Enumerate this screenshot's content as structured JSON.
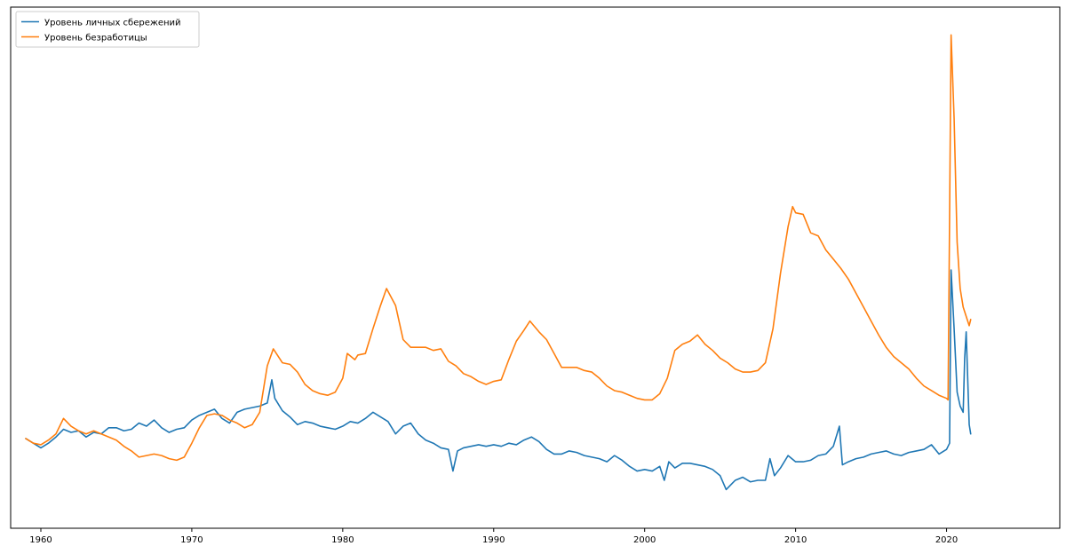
{
  "chart_data": {
    "type": "line",
    "title": "",
    "xlabel": "",
    "ylabel": "",
    "xlim": [
      1958.0,
      2027.5
    ],
    "ylim": [
      -2.5,
      31.2
    ],
    "xticks": [
      1960,
      1970,
      1980,
      1990,
      2000,
      2010,
      2020
    ],
    "xtick_labels": [
      "1960",
      "1970",
      "1980",
      "1990",
      "2000",
      "2010",
      "2020"
    ],
    "show_yticks": false,
    "grid": false,
    "legend_position": "top-left",
    "series": [
      {
        "name": "Уровень личных сбережений",
        "color": "#1f77b4",
        "points": [
          [
            1959.0,
            3.3
          ],
          [
            1959.5,
            3.0
          ],
          [
            1960.0,
            2.7
          ],
          [
            1960.5,
            3.0
          ],
          [
            1961.0,
            3.4
          ],
          [
            1961.5,
            3.9
          ],
          [
            1962.0,
            3.7
          ],
          [
            1962.5,
            3.8
          ],
          [
            1963.0,
            3.4
          ],
          [
            1963.5,
            3.7
          ],
          [
            1964.0,
            3.6
          ],
          [
            1964.5,
            4.0
          ],
          [
            1965.0,
            4.0
          ],
          [
            1965.5,
            3.8
          ],
          [
            1966.0,
            3.9
          ],
          [
            1966.5,
            4.3
          ],
          [
            1967.0,
            4.1
          ],
          [
            1967.5,
            4.5
          ],
          [
            1968.0,
            4.0
          ],
          [
            1968.5,
            3.7
          ],
          [
            1969.0,
            3.9
          ],
          [
            1969.5,
            4.0
          ],
          [
            1970.0,
            4.5
          ],
          [
            1970.5,
            4.8
          ],
          [
            1971.0,
            5.0
          ],
          [
            1971.5,
            5.2
          ],
          [
            1972.0,
            4.6
          ],
          [
            1972.5,
            4.3
          ],
          [
            1973.0,
            5.0
          ],
          [
            1973.5,
            5.2
          ],
          [
            1974.0,
            5.3
          ],
          [
            1974.5,
            5.4
          ],
          [
            1975.0,
            5.6
          ],
          [
            1975.3,
            7.1
          ],
          [
            1975.5,
            5.9
          ],
          [
            1976.0,
            5.1
          ],
          [
            1976.5,
            4.7
          ],
          [
            1977.0,
            4.2
          ],
          [
            1977.5,
            4.4
          ],
          [
            1978.0,
            4.3
          ],
          [
            1978.5,
            4.1
          ],
          [
            1979.0,
            4.0
          ],
          [
            1979.5,
            3.9
          ],
          [
            1980.0,
            4.1
          ],
          [
            1980.5,
            4.4
          ],
          [
            1981.0,
            4.3
          ],
          [
            1981.5,
            4.6
          ],
          [
            1982.0,
            5.0
          ],
          [
            1982.5,
            4.7
          ],
          [
            1983.0,
            4.4
          ],
          [
            1983.5,
            3.6
          ],
          [
            1984.0,
            4.1
          ],
          [
            1984.5,
            4.3
          ],
          [
            1985.0,
            3.6
          ],
          [
            1985.5,
            3.2
          ],
          [
            1986.0,
            3.0
          ],
          [
            1986.5,
            2.7
          ],
          [
            1987.0,
            2.6
          ],
          [
            1987.3,
            1.2
          ],
          [
            1987.6,
            2.5
          ],
          [
            1988.0,
            2.7
          ],
          [
            1988.5,
            2.8
          ],
          [
            1989.0,
            2.9
          ],
          [
            1989.5,
            2.8
          ],
          [
            1990.0,
            2.9
          ],
          [
            1990.5,
            2.8
          ],
          [
            1991.0,
            3.0
          ],
          [
            1991.5,
            2.9
          ],
          [
            1992.0,
            3.2
          ],
          [
            1992.5,
            3.4
          ],
          [
            1993.0,
            3.1
          ],
          [
            1993.5,
            2.6
          ],
          [
            1994.0,
            2.3
          ],
          [
            1994.5,
            2.3
          ],
          [
            1995.0,
            2.5
          ],
          [
            1995.5,
            2.4
          ],
          [
            1996.0,
            2.2
          ],
          [
            1996.5,
            2.1
          ],
          [
            1997.0,
            2.0
          ],
          [
            1997.5,
            1.8
          ],
          [
            1998.0,
            2.2
          ],
          [
            1998.5,
            1.9
          ],
          [
            1999.0,
            1.5
          ],
          [
            1999.5,
            1.2
          ],
          [
            2000.0,
            1.3
          ],
          [
            2000.5,
            1.2
          ],
          [
            2001.0,
            1.5
          ],
          [
            2001.3,
            0.6
          ],
          [
            2001.6,
            1.8
          ],
          [
            2002.0,
            1.4
          ],
          [
            2002.5,
            1.7
          ],
          [
            2003.0,
            1.7
          ],
          [
            2003.5,
            1.6
          ],
          [
            2004.0,
            1.5
          ],
          [
            2004.5,
            1.3
          ],
          [
            2005.0,
            0.9
          ],
          [
            2005.4,
            0.0
          ],
          [
            2005.8,
            0.4
          ],
          [
            2006.0,
            0.6
          ],
          [
            2006.5,
            0.8
          ],
          [
            2007.0,
            0.5
          ],
          [
            2007.5,
            0.6
          ],
          [
            2008.0,
            0.6
          ],
          [
            2008.3,
            2.0
          ],
          [
            2008.6,
            0.9
          ],
          [
            2009.0,
            1.4
          ],
          [
            2009.5,
            2.2
          ],
          [
            2010.0,
            1.8
          ],
          [
            2010.5,
            1.8
          ],
          [
            2011.0,
            1.9
          ],
          [
            2011.5,
            2.2
          ],
          [
            2012.0,
            2.3
          ],
          [
            2012.5,
            2.8
          ],
          [
            2012.9,
            4.1
          ],
          [
            2013.1,
            1.6
          ],
          [
            2013.5,
            1.8
          ],
          [
            2014.0,
            2.0
          ],
          [
            2014.5,
            2.1
          ],
          [
            2015.0,
            2.3
          ],
          [
            2015.5,
            2.4
          ],
          [
            2016.0,
            2.5
          ],
          [
            2016.5,
            2.3
          ],
          [
            2017.0,
            2.2
          ],
          [
            2017.5,
            2.4
          ],
          [
            2018.0,
            2.5
          ],
          [
            2018.5,
            2.6
          ],
          [
            2019.0,
            2.9
          ],
          [
            2019.5,
            2.3
          ],
          [
            2020.0,
            2.6
          ],
          [
            2020.2,
            3.0
          ],
          [
            2020.3,
            14.2
          ],
          [
            2020.5,
            10.4
          ],
          [
            2020.7,
            6.3
          ],
          [
            2020.9,
            5.4
          ],
          [
            2021.1,
            5.0
          ],
          [
            2021.2,
            8.5
          ],
          [
            2021.3,
            10.2
          ],
          [
            2021.5,
            4.2
          ],
          [
            2021.6,
            3.6
          ]
        ]
      },
      {
        "name": "Уровень безработицы",
        "color": "#ff7f0e",
        "points": [
          [
            1959.0,
            3.3
          ],
          [
            1959.5,
            3.0
          ],
          [
            1960.0,
            2.9
          ],
          [
            1960.5,
            3.2
          ],
          [
            1961.0,
            3.6
          ],
          [
            1961.5,
            4.6
          ],
          [
            1962.0,
            4.1
          ],
          [
            1962.5,
            3.8
          ],
          [
            1963.0,
            3.6
          ],
          [
            1963.5,
            3.8
          ],
          [
            1964.0,
            3.6
          ],
          [
            1964.5,
            3.4
          ],
          [
            1965.0,
            3.2
          ],
          [
            1965.5,
            2.8
          ],
          [
            1966.0,
            2.5
          ],
          [
            1966.5,
            2.1
          ],
          [
            1967.0,
            2.2
          ],
          [
            1967.5,
            2.3
          ],
          [
            1968.0,
            2.2
          ],
          [
            1968.5,
            2.0
          ],
          [
            1969.0,
            1.9
          ],
          [
            1969.5,
            2.1
          ],
          [
            1970.0,
            3.0
          ],
          [
            1970.5,
            4.0
          ],
          [
            1971.0,
            4.8
          ],
          [
            1971.5,
            4.9
          ],
          [
            1972.0,
            4.8
          ],
          [
            1972.5,
            4.5
          ],
          [
            1973.0,
            4.3
          ],
          [
            1973.5,
            4.0
          ],
          [
            1974.0,
            4.2
          ],
          [
            1974.5,
            5.0
          ],
          [
            1975.0,
            8.0
          ],
          [
            1975.4,
            9.1
          ],
          [
            1976.0,
            8.2
          ],
          [
            1976.5,
            8.1
          ],
          [
            1977.0,
            7.6
          ],
          [
            1977.5,
            6.8
          ],
          [
            1978.0,
            6.4
          ],
          [
            1978.5,
            6.2
          ],
          [
            1979.0,
            6.1
          ],
          [
            1979.5,
            6.3
          ],
          [
            1980.0,
            7.2
          ],
          [
            1980.3,
            8.8
          ],
          [
            1980.8,
            8.4
          ],
          [
            1981.0,
            8.7
          ],
          [
            1981.5,
            8.8
          ],
          [
            1982.0,
            10.4
          ],
          [
            1982.5,
            11.9
          ],
          [
            1982.9,
            13.0
          ],
          [
            1983.5,
            11.9
          ],
          [
            1984.0,
            9.7
          ],
          [
            1984.5,
            9.2
          ],
          [
            1985.0,
            9.2
          ],
          [
            1985.5,
            9.2
          ],
          [
            1986.0,
            9.0
          ],
          [
            1986.5,
            9.1
          ],
          [
            1987.0,
            8.3
          ],
          [
            1987.5,
            8.0
          ],
          [
            1988.0,
            7.5
          ],
          [
            1988.5,
            7.3
          ],
          [
            1989.0,
            7.0
          ],
          [
            1989.5,
            6.8
          ],
          [
            1990.0,
            7.0
          ],
          [
            1990.5,
            7.1
          ],
          [
            1991.0,
            8.4
          ],
          [
            1991.5,
            9.6
          ],
          [
            1992.0,
            10.3
          ],
          [
            1992.4,
            10.9
          ],
          [
            1993.0,
            10.2
          ],
          [
            1993.5,
            9.7
          ],
          [
            1994.0,
            8.8
          ],
          [
            1994.5,
            7.9
          ],
          [
            1995.0,
            7.9
          ],
          [
            1995.5,
            7.9
          ],
          [
            1996.0,
            7.7
          ],
          [
            1996.5,
            7.6
          ],
          [
            1997.0,
            7.2
          ],
          [
            1997.5,
            6.7
          ],
          [
            1998.0,
            6.4
          ],
          [
            1998.5,
            6.3
          ],
          [
            1999.0,
            6.1
          ],
          [
            1999.5,
            5.9
          ],
          [
            2000.0,
            5.8
          ],
          [
            2000.5,
            5.8
          ],
          [
            2001.0,
            6.2
          ],
          [
            2001.5,
            7.2
          ],
          [
            2002.0,
            9.0
          ],
          [
            2002.5,
            9.4
          ],
          [
            2003.0,
            9.6
          ],
          [
            2003.5,
            10.0
          ],
          [
            2004.0,
            9.4
          ],
          [
            2004.5,
            9.0
          ],
          [
            2005.0,
            8.5
          ],
          [
            2005.5,
            8.2
          ],
          [
            2006.0,
            7.8
          ],
          [
            2006.5,
            7.6
          ],
          [
            2007.0,
            7.6
          ],
          [
            2007.5,
            7.7
          ],
          [
            2008.0,
            8.2
          ],
          [
            2008.5,
            10.4
          ],
          [
            2009.0,
            14.0
          ],
          [
            2009.5,
            17.0
          ],
          [
            2009.8,
            18.3
          ],
          [
            2010.0,
            17.9
          ],
          [
            2010.5,
            17.8
          ],
          [
            2011.0,
            16.6
          ],
          [
            2011.5,
            16.4
          ],
          [
            2012.0,
            15.5
          ],
          [
            2012.5,
            14.9
          ],
          [
            2013.0,
            14.3
          ],
          [
            2013.5,
            13.6
          ],
          [
            2014.0,
            12.7
          ],
          [
            2014.5,
            11.8
          ],
          [
            2015.0,
            10.9
          ],
          [
            2015.5,
            10.0
          ],
          [
            2016.0,
            9.2
          ],
          [
            2016.5,
            8.6
          ],
          [
            2017.0,
            8.2
          ],
          [
            2017.5,
            7.8
          ],
          [
            2018.0,
            7.2
          ],
          [
            2018.5,
            6.7
          ],
          [
            2019.0,
            6.4
          ],
          [
            2019.5,
            6.1
          ],
          [
            2020.0,
            5.9
          ],
          [
            2020.1,
            5.8
          ],
          [
            2020.3,
            29.4
          ],
          [
            2020.5,
            24.0
          ],
          [
            2020.7,
            16.0
          ],
          [
            2020.9,
            13.0
          ],
          [
            2021.1,
            11.8
          ],
          [
            2021.3,
            11.2
          ],
          [
            2021.5,
            10.6
          ],
          [
            2021.6,
            11.0
          ]
        ]
      }
    ]
  }
}
